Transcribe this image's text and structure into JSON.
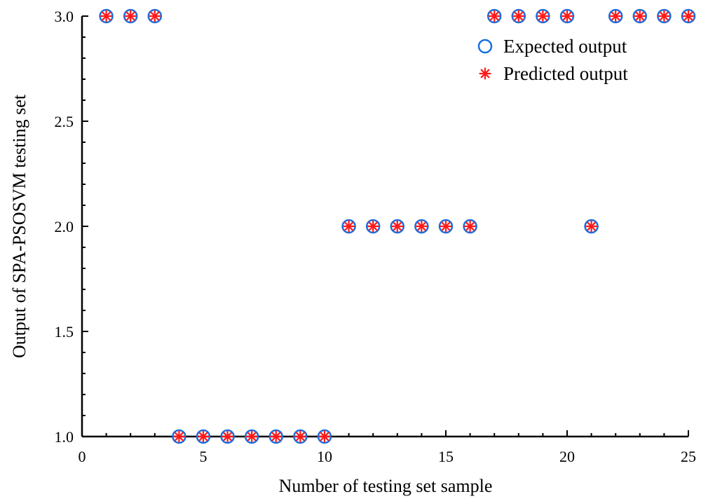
{
  "chart_data": {
    "type": "scatter",
    "xlabel": "Number of testing set sample",
    "ylabel": "Output of SPA-PSOSVM testing set",
    "xlim": [
      0,
      25
    ],
    "ylim": [
      1.0,
      3.0
    ],
    "x_ticks": [
      0,
      5,
      10,
      15,
      20,
      25
    ],
    "x_tick_labels": [
      "0",
      "5",
      "10",
      "15",
      "20",
      "25"
    ],
    "y_ticks": [
      1.0,
      1.5,
      2.0,
      2.5,
      3.0
    ],
    "y_tick_labels": [
      "1.0",
      "1.5",
      "2.0",
      "2.5",
      "3.0"
    ],
    "grid": false,
    "legend_position": "top-right",
    "series": [
      {
        "name": "Expected output",
        "marker": "circle",
        "color": "#1a6fe0",
        "x": [
          1,
          2,
          3,
          4,
          5,
          6,
          7,
          8,
          9,
          10,
          11,
          12,
          13,
          14,
          15,
          16,
          17,
          18,
          19,
          20,
          21,
          22,
          23,
          24,
          25
        ],
        "y": [
          3,
          3,
          3,
          1,
          1,
          1,
          1,
          1,
          1,
          1,
          2,
          2,
          2,
          2,
          2,
          2,
          3,
          3,
          3,
          3,
          2,
          3,
          3,
          3,
          3
        ]
      },
      {
        "name": "Predicted output",
        "marker": "asterisk",
        "color": "#ff1a1a",
        "x": [
          1,
          2,
          3,
          4,
          5,
          6,
          7,
          8,
          9,
          10,
          11,
          12,
          13,
          14,
          15,
          16,
          17,
          18,
          19,
          20,
          21,
          22,
          23,
          24,
          25
        ],
        "y": [
          3,
          3,
          3,
          1,
          1,
          1,
          1,
          1,
          1,
          1,
          2,
          2,
          2,
          2,
          2,
          2,
          3,
          3,
          3,
          3,
          2,
          3,
          3,
          3,
          3
        ]
      }
    ]
  }
}
